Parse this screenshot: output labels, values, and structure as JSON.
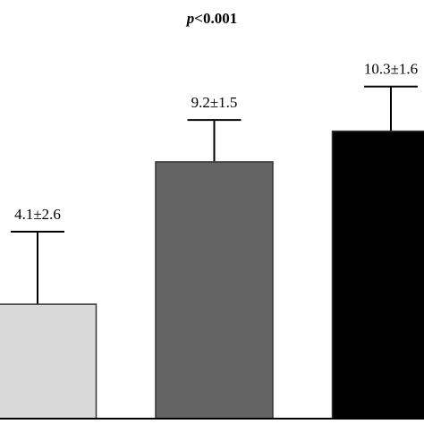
{
  "chart_data": {
    "type": "bar",
    "title": "p<0.001",
    "categories": [
      null,
      null,
      null
    ],
    "values": [
      4.1,
      9.2,
      10.3
    ],
    "errors": [
      2.6,
      1.5,
      1.6
    ],
    "value_labels": [
      "4.1±2.6",
      "9.2±1.5",
      "10.3±1.6"
    ],
    "colors": [
      "#d9d9d9",
      "#646464",
      "#000000"
    ],
    "ylim": [
      0,
      15
    ]
  }
}
